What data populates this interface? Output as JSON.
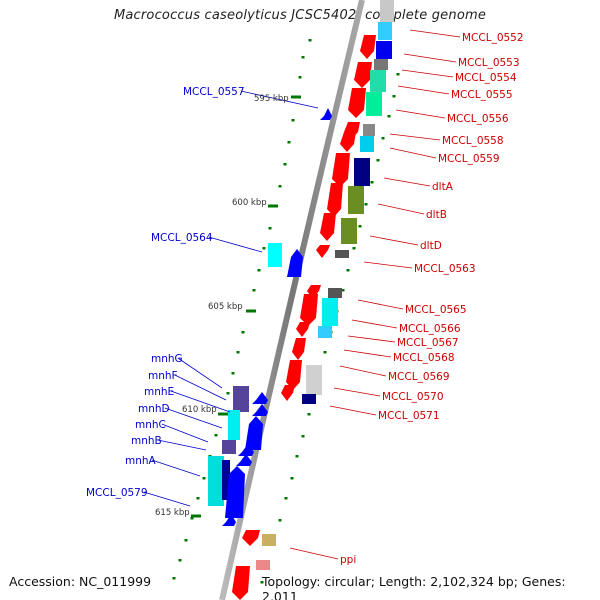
{
  "title": "Macrococcus caseolyticus JCSC5402, complete genome",
  "footer": {
    "accession": "Accession: NC_011999",
    "summary": "Topology: circular; Length: 2,102,324 bp; Genes: 2,011"
  },
  "scale_labels": [
    "595 kbp",
    "600 kbp",
    "605 kbp",
    "610 kbp",
    "615 kbp"
  ],
  "genes_right": [
    "MCCL_0552",
    "MCCL_0553",
    "MCCL_0554",
    "MCCL_0555",
    "MCCL_0556",
    "MCCL_0558",
    "MCCL_0559",
    "dltA",
    "dltB",
    "dltD",
    "MCCL_0563",
    "MCCL_0565",
    "MCCL_0566",
    "MCCL_0567",
    "MCCL_0568",
    "MCCL_0569",
    "MCCL_0570",
    "MCCL_0571",
    "ppi"
  ],
  "genes_left": [
    "MCCL_0557",
    "MCCL_0564",
    "mnhG",
    "mnhF",
    "mnhE",
    "mnhD",
    "mnhC",
    "mnhB",
    "mnhA",
    "MCCL_0579"
  ],
  "colors": {
    "forward_label": "#cc0000",
    "reverse_label": "#0000cc",
    "forward_feature": "#ff0000",
    "reverse_feature": "#0000ff",
    "backbone": "#999999",
    "tick": "#007700"
  }
}
